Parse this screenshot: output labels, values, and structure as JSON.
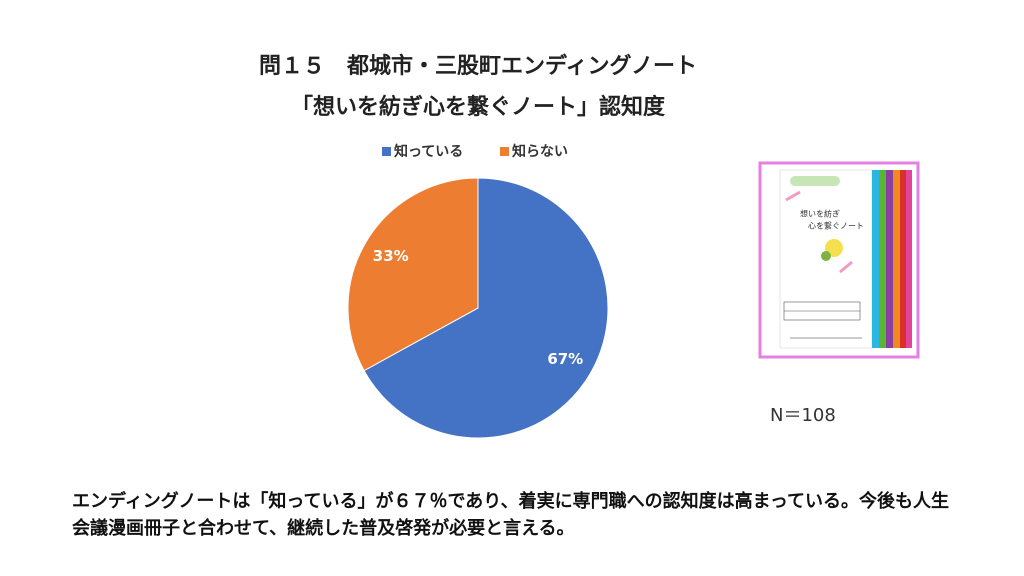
{
  "chart_data": {
    "type": "pie",
    "title": "問１５　都城市・三股町エンディングノート",
    "subtitle": "「想いを紡ぎ心を繋ぐノート」認知度",
    "categories": [
      "知っている",
      "知らない"
    ],
    "values": [
      67,
      33
    ],
    "value_labels": [
      "67%",
      "33%"
    ],
    "colors": [
      "#4472c4",
      "#ed7d31"
    ],
    "legend": "top",
    "annotations": [
      "N＝108"
    ]
  },
  "notebook_cover": [
    "想いを紡ぎ",
    "心を繋ぐノート"
  ],
  "footer": "エンディングノートは「知っている」が６７％であり、着実に専門職への認知度は高まっている。今後も人生会議漫画冊子と合わせて、継続した普及啓発が必要と言える。"
}
